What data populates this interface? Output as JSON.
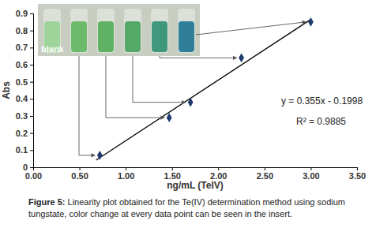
{
  "chart_data": {
    "type": "scatter",
    "x_label": "ng/mL (TeIV)",
    "y_label": "Abs",
    "caption": "Figure 5: Linearity plot obtained for the Te(IV) determination method using sodium tungstate, color change at every data point can be seen in the insert.",
    "annotations": [
      "y = 0.355x - 0.1998",
      "R² = 0.9885",
      "blank"
    ],
    "series": [
      {
        "type": "scatter",
        "color": "#1f3a6e",
        "marker": "diamond",
        "x": [
          0.72,
          1.47,
          1.7,
          2.25,
          3.0
        ],
        "values": [
          0.07,
          0.29,
          0.38,
          0.64,
          0.85
        ]
      },
      {
        "type": "line",
        "color": "#000000",
        "line_style": "solid",
        "x": [
          0.68,
          3.0
        ],
        "values": [
          0.0416,
          0.865
        ]
      }
    ],
    "xlim": [
      0,
      3.5
    ],
    "xticks": [
      {
        "value": 0,
        "label": "0.00"
      },
      {
        "value": 0.5,
        "label": "0.50"
      },
      {
        "value": 1,
        "label": "1.00"
      },
      {
        "value": 1.5,
        "label": "1.50"
      },
      {
        "value": 2,
        "label": "2.00"
      },
      {
        "value": 2.5,
        "label": "2.50"
      },
      {
        "value": 3,
        "label": "3.00"
      },
      {
        "value": 3.5,
        "label": "3.50"
      }
    ],
    "ylim": [
      0,
      0.9
    ],
    "yticks": [
      0,
      0.1,
      0.2,
      0.3,
      0.4,
      0.5,
      0.6,
      0.7,
      0.8,
      0.9
    ],
    "grid": false
  }
}
